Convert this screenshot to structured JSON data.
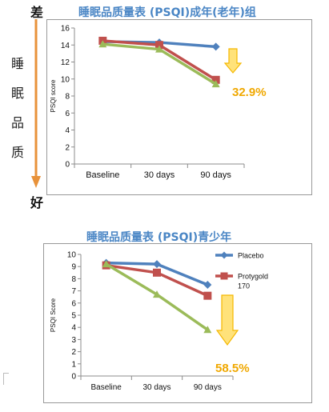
{
  "side_scale": {
    "top": "差",
    "bottom": "好",
    "vertical_chars": [
      "睡",
      "眠",
      "品",
      "质"
    ]
  },
  "chart_data": [
    {
      "type": "line",
      "title": "睡眠品质量表 (PSQI)成年(老年)组",
      "ylabel": "PSQI score",
      "xlabel": "",
      "categories": [
        "Baseline",
        "30 days",
        "90 days"
      ],
      "ylim": [
        0,
        16
      ],
      "yticks": [
        0,
        2,
        4,
        6,
        8,
        10,
        12,
        14,
        16
      ],
      "grid": false,
      "legend": "none",
      "series": [
        {
          "color": "#4f81bd",
          "marker": "diamond",
          "values": [
            14.4,
            14.3,
            13.8
          ]
        },
        {
          "color": "#c0504d",
          "marker": "square",
          "values": [
            14.5,
            14.0,
            9.9
          ]
        },
        {
          "color": "#9bbb59",
          "marker": "triangle",
          "values": [
            14.1,
            13.5,
            9.4
          ]
        }
      ],
      "annotation": "32.9%"
    },
    {
      "type": "line",
      "title": "睡眠品质量表 (PSQI)青少年",
      "ylabel": "PSQI Score",
      "xlabel": "",
      "categories": [
        "Baseline",
        "30 days",
        "90 days"
      ],
      "ylim": [
        0,
        10
      ],
      "yticks": [
        0,
        1,
        2,
        3,
        4,
        5,
        6,
        7,
        8,
        9,
        10
      ],
      "grid": false,
      "legend": "right",
      "series": [
        {
          "name": "Placebo",
          "color": "#4f81bd",
          "marker": "diamond",
          "values": [
            9.3,
            9.2,
            7.5
          ]
        },
        {
          "name": "Protygold 170",
          "color": "#c0504d",
          "marker": "square",
          "values": [
            9.1,
            8.5,
            6.6
          ]
        },
        {
          "color": "#9bbb59",
          "marker": "triangle",
          "values": [
            9.2,
            6.7,
            3.8
          ]
        }
      ],
      "annotation": "58.5%"
    }
  ],
  "colors": {
    "title": "#4a86c5",
    "annotation": "#f0a800",
    "arrow_fill": "#ffe27a",
    "scale_arrow": "#e8923a",
    "axis": "#8c8c8c"
  }
}
